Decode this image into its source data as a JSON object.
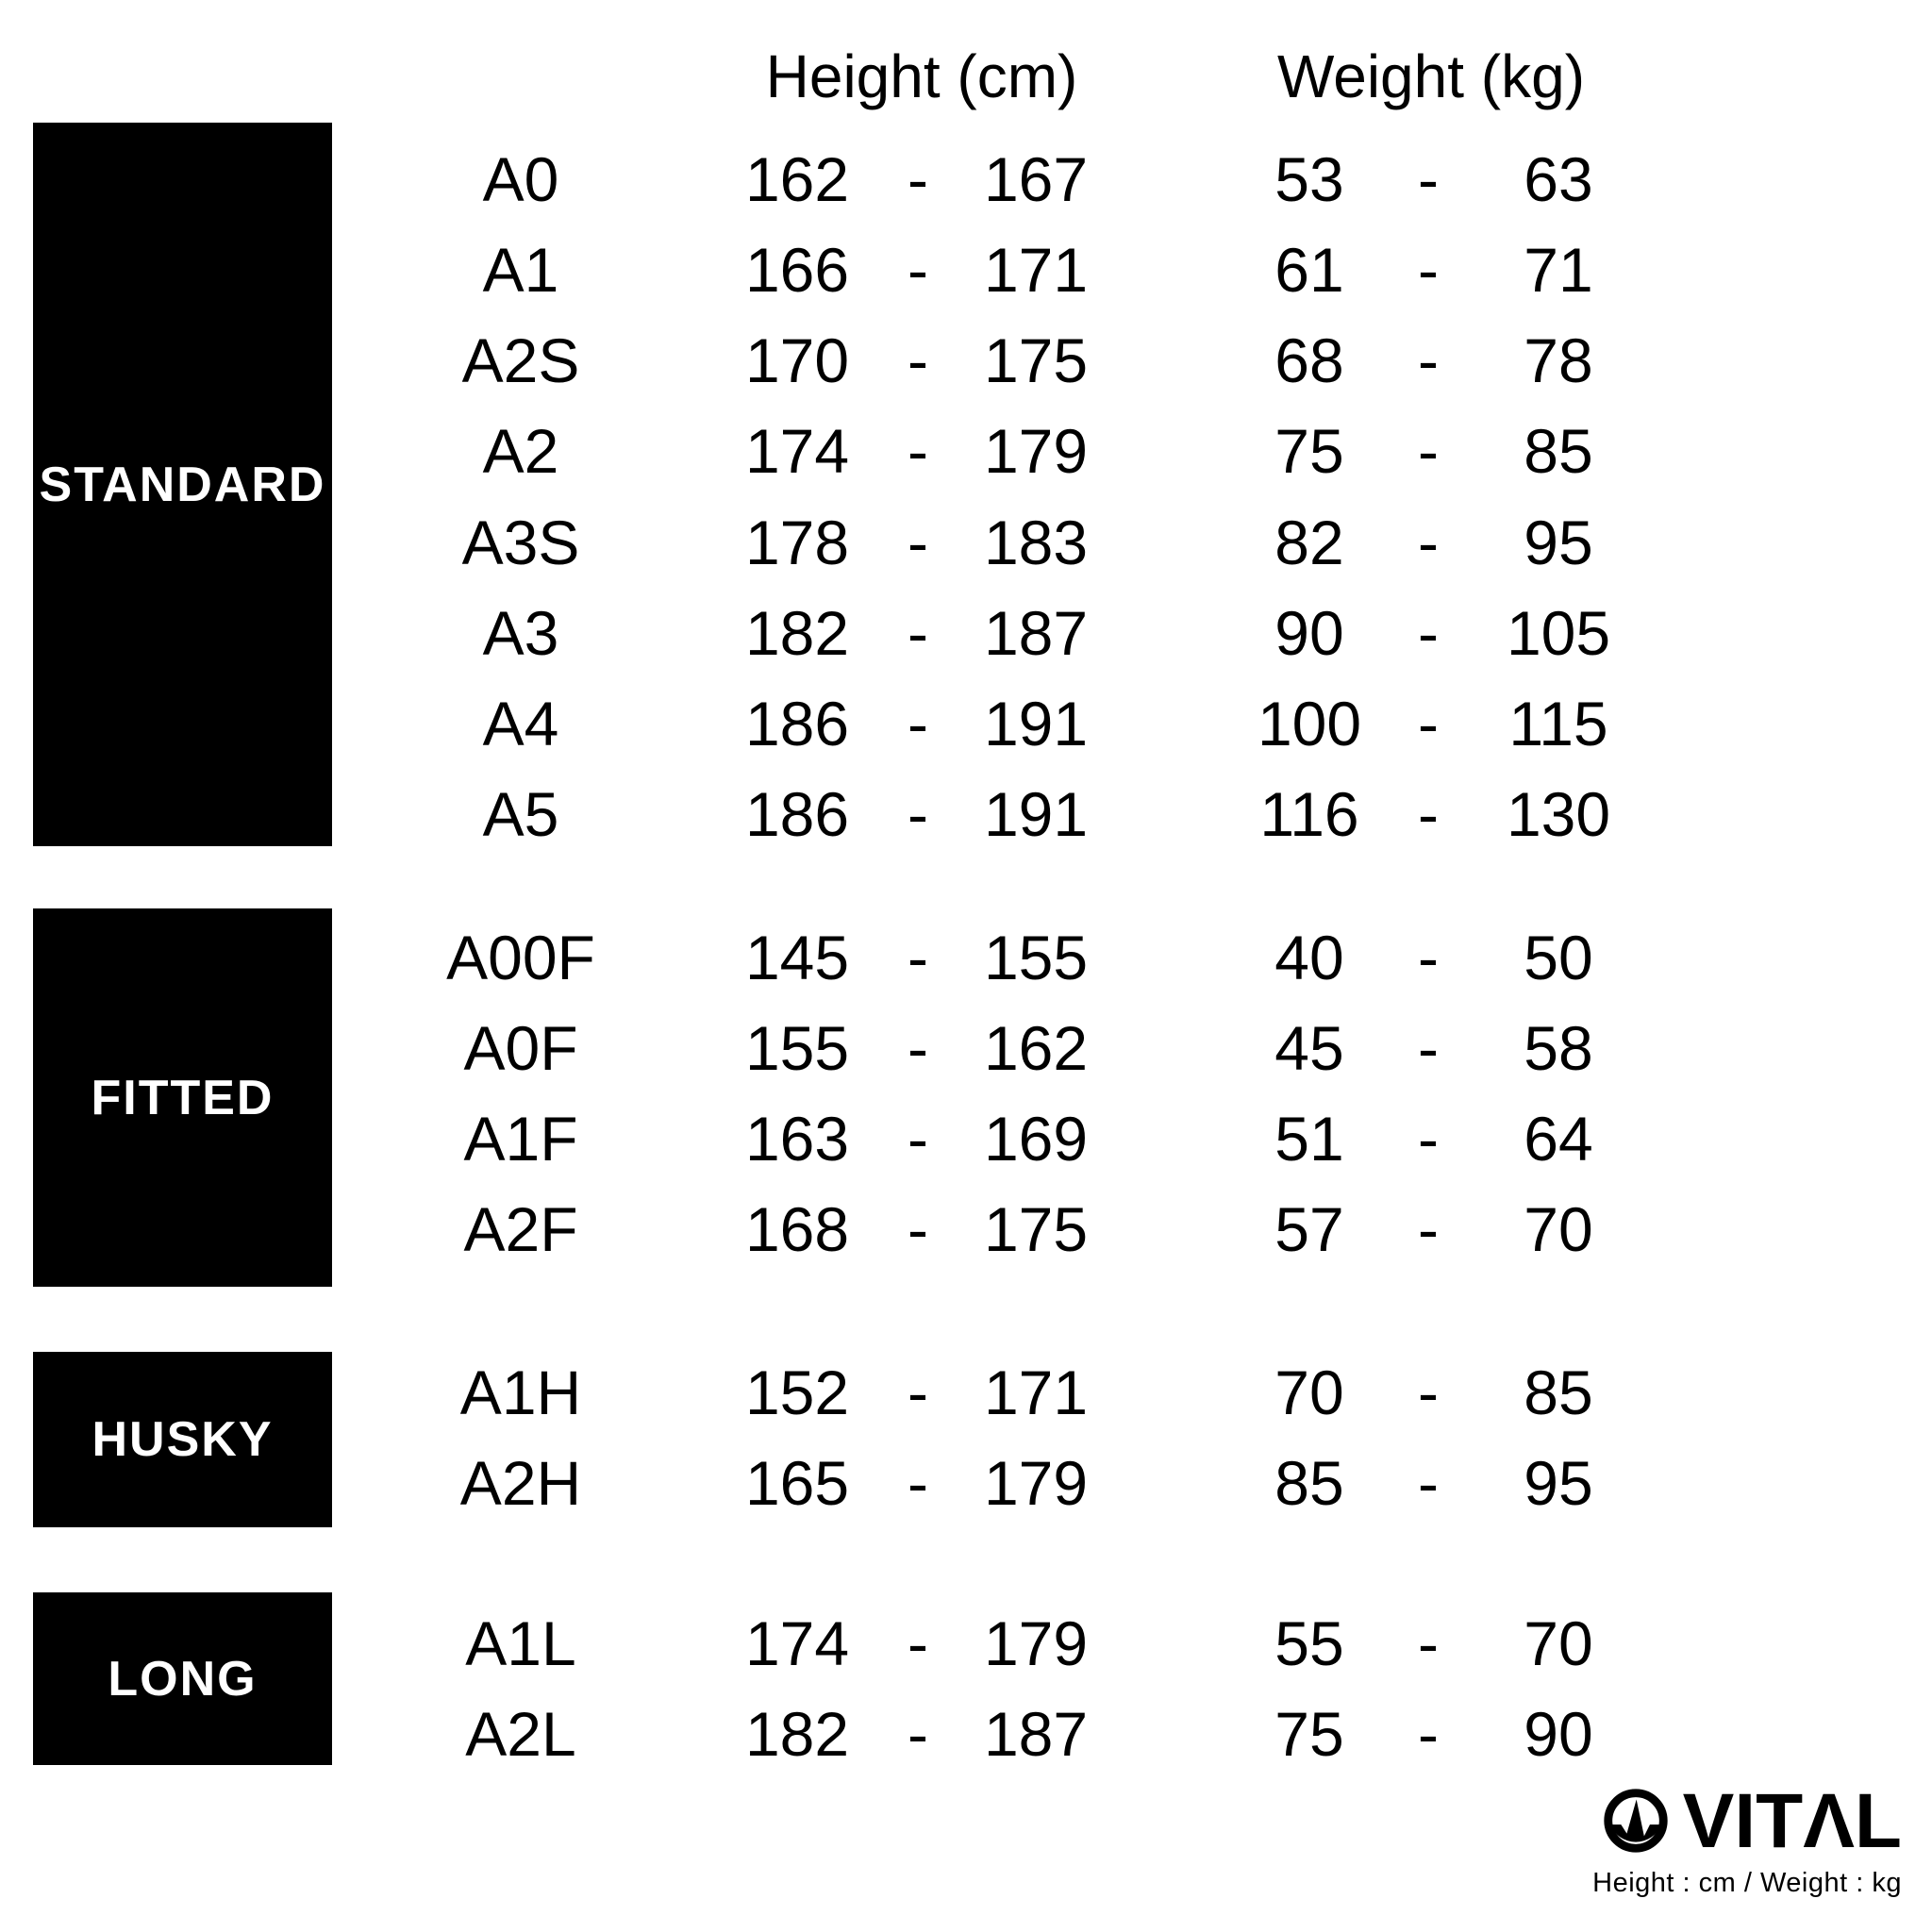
{
  "chart_data": {
    "type": "table",
    "column_headers": {
      "height": "Height (cm)",
      "weight": "Weight (kg)"
    },
    "range_separator": "-",
    "sections": [
      {
        "name": "STANDARD",
        "rows": [
          {
            "size": "A0",
            "h_min": "162",
            "h_max": "167",
            "w_min": "53",
            "w_max": "63"
          },
          {
            "size": "A1",
            "h_min": "166",
            "h_max": "171",
            "w_min": "61",
            "w_max": "71"
          },
          {
            "size": "A2S",
            "h_min": "170",
            "h_max": "175",
            "w_min": "68",
            "w_max": "78"
          },
          {
            "size": "A2",
            "h_min": "174",
            "h_max": "179",
            "w_min": "75",
            "w_max": "85"
          },
          {
            "size": "A3S",
            "h_min": "178",
            "h_max": "183",
            "w_min": "82",
            "w_max": "95"
          },
          {
            "size": "A3",
            "h_min": "182",
            "h_max": "187",
            "w_min": "90",
            "w_max": "105"
          },
          {
            "size": "A4",
            "h_min": "186",
            "h_max": "191",
            "w_min": "100",
            "w_max": "115"
          },
          {
            "size": "A5",
            "h_min": "186",
            "h_max": "191",
            "w_min": "116",
            "w_max": "130"
          }
        ]
      },
      {
        "name": "FITTED",
        "rows": [
          {
            "size": "A00F",
            "h_min": "145",
            "h_max": "155",
            "w_min": "40",
            "w_max": "50"
          },
          {
            "size": "A0F",
            "h_min": "155",
            "h_max": "162",
            "w_min": "45",
            "w_max": "58"
          },
          {
            "size": "A1F",
            "h_min": "163",
            "h_max": "169",
            "w_min": "51",
            "w_max": "64"
          },
          {
            "size": "A2F",
            "h_min": "168",
            "h_max": "175",
            "w_min": "57",
            "w_max": "70"
          }
        ]
      },
      {
        "name": "HUSKY",
        "rows": [
          {
            "size": "A1H",
            "h_min": "152",
            "h_max": "171",
            "w_min": "70",
            "w_max": "85"
          },
          {
            "size": "A2H",
            "h_min": "165",
            "h_max": "179",
            "w_min": "85",
            "w_max": "95"
          }
        ]
      },
      {
        "name": "LONG",
        "rows": [
          {
            "size": "A1L",
            "h_min": "174",
            "h_max": "179",
            "w_min": "55",
            "w_max": "70"
          },
          {
            "size": "A2L",
            "h_min": "182",
            "h_max": "187",
            "w_min": "75",
            "w_max": "90"
          }
        ]
      }
    ]
  },
  "footer": {
    "brand": "VITAL",
    "brand_display": "VITΛL",
    "units_note": "Height : cm / Weight : kg",
    "logo_icon": "pulse-circle-icon"
  },
  "colors": {
    "background": "#ffffff",
    "ink": "#000000",
    "box_fill": "#000000",
    "box_text": "#ffffff"
  }
}
